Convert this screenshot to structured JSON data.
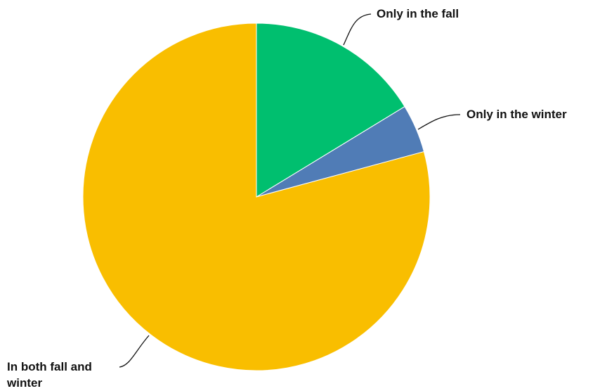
{
  "chart_data": {
    "type": "pie",
    "title": "",
    "series": [
      {
        "label": "Only in the fall",
        "value": 16.3,
        "color": "#00BF6F"
      },
      {
        "label": "Only in the winter",
        "value": 4.5,
        "color": "#507CB6"
      },
      {
        "label": "In both fall and winter",
        "value": 79.2,
        "color": "#F9BE00"
      }
    ],
    "start_angle": "12 o'clock",
    "direction": "clockwise",
    "legend": "none"
  },
  "labels": {
    "fall": "Only in the fall",
    "winter": "Only in the winter",
    "both_line1": "In both fall and",
    "both_line2": "winter"
  }
}
